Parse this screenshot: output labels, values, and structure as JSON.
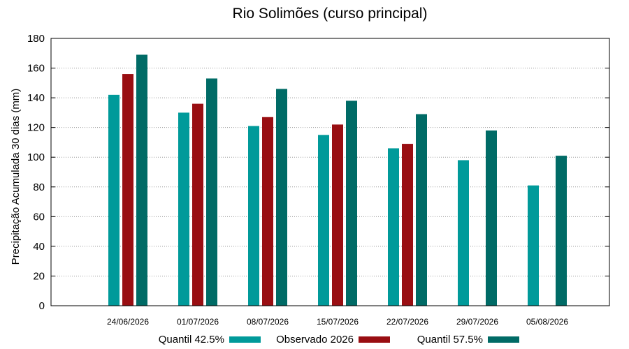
{
  "chart_data": {
    "type": "bar",
    "title": "Rio Solimões (curso principal)",
    "xlabel": "",
    "ylabel": "Precipitação Acumulada 30 dias (mm)",
    "ylim": [
      0,
      180
    ],
    "yticks": [
      0,
      20,
      40,
      60,
      80,
      100,
      120,
      140,
      160,
      180
    ],
    "grid": true,
    "legend_position": "bottom",
    "categories": [
      "24/06/2026",
      "01/07/2026",
      "08/07/2026",
      "15/07/2026",
      "22/07/2026",
      "29/07/2026",
      "05/08/2026"
    ],
    "series": [
      {
        "name": "Quantil 42.5%",
        "color": "#009a9a",
        "values": [
          142,
          130,
          121,
          115,
          106,
          98,
          81
        ]
      },
      {
        "name": "Observado 2026",
        "color": "#990e12",
        "values": [
          156,
          136,
          127,
          122,
          109,
          null,
          null
        ]
      },
      {
        "name": "Quantil 57.5%",
        "color": "#006b66",
        "values": [
          169,
          153,
          146,
          138,
          129,
          118,
          101
        ]
      }
    ]
  }
}
